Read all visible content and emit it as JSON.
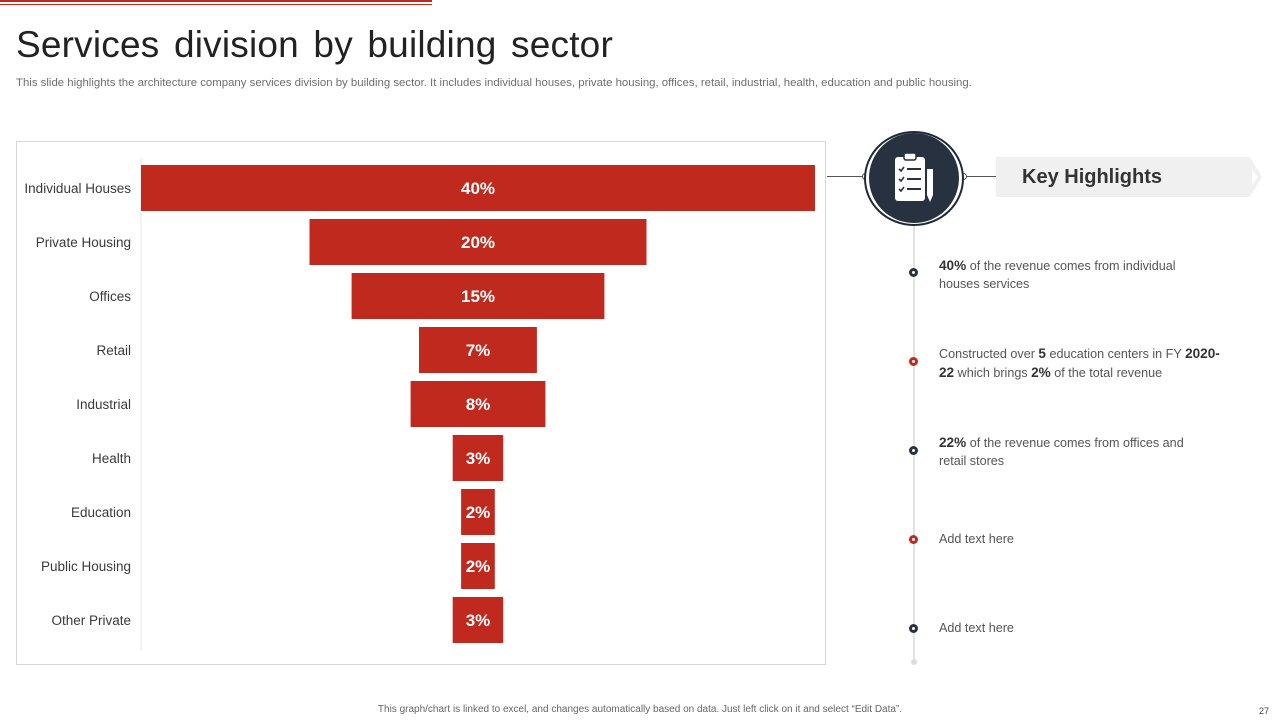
{
  "slide": {
    "title": "Services division by building sector",
    "subtitle": "This slide highlights the architecture company services division by building sector. It includes individual houses, private housing, offices, retail, industrial, health, education and public housing.",
    "footer_note": "This graph/chart is linked to excel, and changes automatically based on data. Just left click on it and select “Edit Data”.",
    "page_number": "27"
  },
  "colors": {
    "accent": "#c0291e",
    "dark": "#273140",
    "text": "#3a3a3a"
  },
  "chart_data": {
    "type": "bar",
    "orientation": "horizontal-centered-funnel",
    "title": "",
    "xlabel": "",
    "ylabel": "",
    "categories": [
      "Individual Houses",
      "Private Housing",
      "Offices",
      "Retail",
      "Industrial",
      "Health",
      "Education",
      "Public Housing",
      "Other Private"
    ],
    "values": [
      40,
      20,
      15,
      7,
      8,
      3,
      2,
      2,
      3
    ],
    "data_labels": [
      "40%",
      "20%",
      "15%",
      "7%",
      "8%",
      "3%",
      "2%",
      "2%",
      "3%"
    ],
    "value_unit": "%",
    "xlim": [
      0,
      40
    ],
    "grid": false,
    "legend": "none"
  },
  "highlights": {
    "header": "Key Highlights",
    "icon": "clipboard-checklist-icon",
    "items": [
      {
        "bold": "40%",
        "text": " of the revenue  comes from individual houses services",
        "dot": "dark"
      },
      {
        "pre": "Constructed over ",
        "bold1": "5",
        "mid1": " education centers in FY ",
        "bold2": "2020-22",
        "mid2": " which brings ",
        "bold3": "2%",
        "post": " of the total revenue",
        "dot": "red"
      },
      {
        "bold": "22%",
        "text": " of the revenue  comes from offices and retail stores",
        "dot": "dark"
      },
      {
        "text": "Add text here",
        "dot": "red"
      },
      {
        "text": "Add text here",
        "dot": "dark"
      }
    ]
  }
}
